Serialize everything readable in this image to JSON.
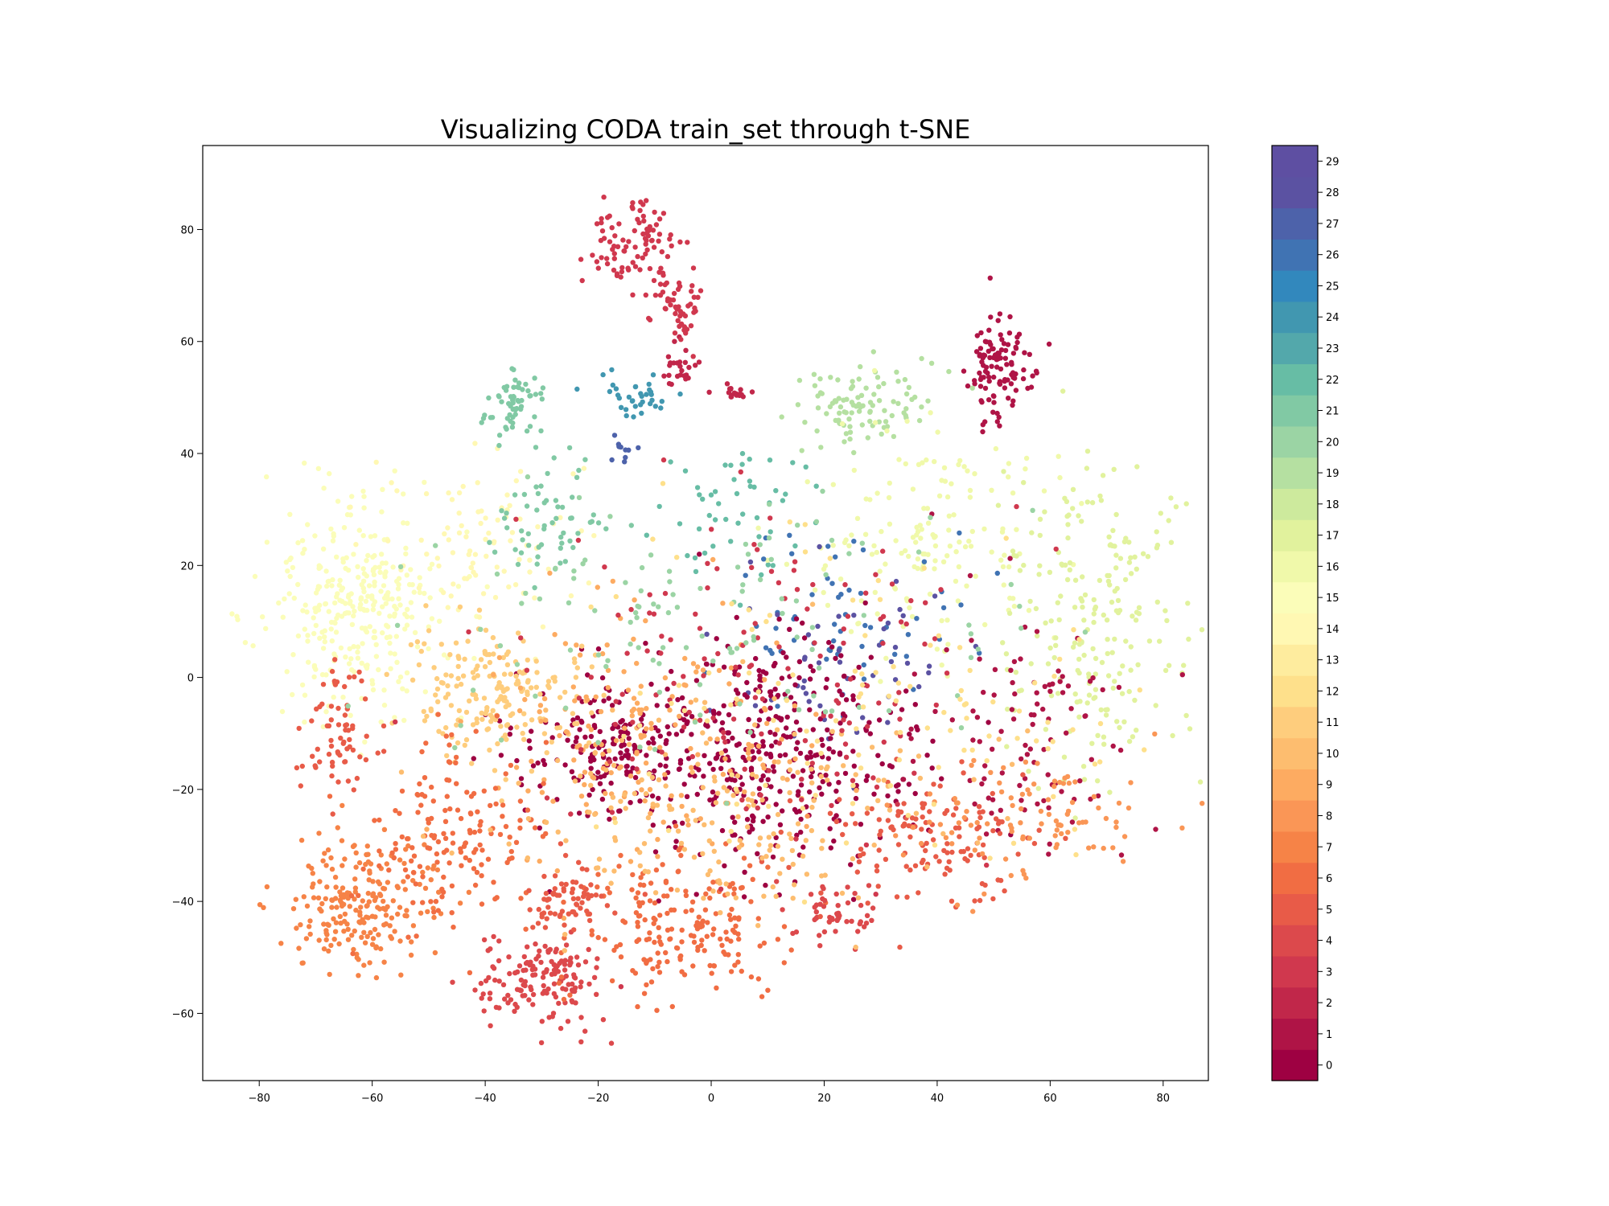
{
  "chart_data": {
    "type": "scatter",
    "title": "Visualizing CODA train_set through t-SNE",
    "xlabel": "",
    "ylabel": "",
    "xlim": [
      -90,
      88
    ],
    "ylim": [
      -72,
      95
    ],
    "grid": false,
    "xticks": [
      -80,
      -60,
      -40,
      -20,
      0,
      20,
      40,
      60,
      80
    ],
    "yticks": [
      -60,
      -40,
      -20,
      0,
      20,
      40,
      60,
      80
    ],
    "colorbar": {
      "colormap": "Spectral",
      "labels": [
        "0",
        "1",
        "2",
        "3",
        "4",
        "5",
        "6",
        "7",
        "8",
        "9",
        "10",
        "11",
        "12",
        "13",
        "14",
        "15",
        "16",
        "17",
        "18",
        "19",
        "20",
        "21",
        "22",
        "23",
        "24",
        "25",
        "26",
        "27",
        "28",
        "29"
      ],
      "colors": [
        "#9e0142",
        "#af1446",
        "#c1274a",
        "#d0384e",
        "#dc494c",
        "#e85b48",
        "#f16d43",
        "#f68347",
        "#fa9656",
        "#fdab61",
        "#fdbd6f",
        "#fecd7d",
        "#fee08b",
        "#feec9e",
        "#fff8b3",
        "#fbfdb9",
        "#f0f9aa",
        "#e1f29d",
        "#cdea9d",
        "#b5e0a1",
        "#9bd4a4",
        "#81c9a4",
        "#67bda5",
        "#53a8ab",
        "#4197b0",
        "#3288bd",
        "#4073b3",
        "#4d62aa",
        "#5b52a2",
        "#5e4fa2"
      ]
    },
    "clusters": [
      {
        "label": 3,
        "center": [
          -14,
          77
        ],
        "spread": [
          4.5,
          4
        ],
        "n": 90
      },
      {
        "label": 3,
        "center": [
          -6,
          68
        ],
        "spread": [
          3,
          3
        ],
        "n": 40
      },
      {
        "label": 2,
        "center": [
          -6,
          55
        ],
        "spread": [
          1.5,
          2
        ],
        "n": 25
      },
      {
        "label": 3,
        "center": [
          -5,
          63
        ],
        "spread": [
          1,
          1.5
        ],
        "n": 12
      },
      {
        "label": 2,
        "center": [
          4,
          51
        ],
        "spread": [
          1.5,
          0.8
        ],
        "n": 18
      },
      {
        "label": 1,
        "center": [
          51,
          55
        ],
        "spread": [
          3,
          4.5
        ],
        "n": 110
      },
      {
        "label": 21,
        "center": [
          -35,
          49
        ],
        "spread": [
          2.5,
          3
        ],
        "n": 60
      },
      {
        "label": 24,
        "center": [
          -14,
          49
        ],
        "spread": [
          3,
          2
        ],
        "n": 35
      },
      {
        "label": 27,
        "center": [
          -17,
          41
        ],
        "spread": [
          1.5,
          2
        ],
        "n": 10
      },
      {
        "label": 19,
        "center": [
          27,
          48
        ],
        "spread": [
          6,
          4
        ],
        "n": 100
      },
      {
        "label": 15,
        "center": [
          -63,
          12
        ],
        "spread": [
          8,
          10
        ],
        "n": 320
      },
      {
        "label": 14,
        "center": [
          -40,
          24
        ],
        "spread": [
          8,
          8
        ],
        "n": 90
      },
      {
        "label": 21,
        "center": [
          -30,
          28
        ],
        "spread": [
          6,
          5
        ],
        "n": 60
      },
      {
        "label": 22,
        "center": [
          5,
          30
        ],
        "spread": [
          8,
          6
        ],
        "n": 50
      },
      {
        "label": 16,
        "center": [
          40,
          25
        ],
        "spread": [
          12,
          10
        ],
        "n": 160
      },
      {
        "label": 17,
        "center": [
          68,
          10
        ],
        "spread": [
          8,
          14
        ],
        "n": 220
      },
      {
        "label": 26,
        "center": [
          23,
          10
        ],
        "spread": [
          10,
          8
        ],
        "n": 60
      },
      {
        "label": 28,
        "center": [
          25,
          5
        ],
        "spread": [
          12,
          10
        ],
        "n": 50
      },
      {
        "label": 0,
        "center": [
          10,
          -14
        ],
        "spread": [
          14,
          10
        ],
        "n": 420
      },
      {
        "label": 0,
        "center": [
          -20,
          -12
        ],
        "spread": [
          8,
          6
        ],
        "n": 140
      },
      {
        "label": 1,
        "center": [
          55,
          -8
        ],
        "spread": [
          10,
          10
        ],
        "n": 100
      },
      {
        "label": 11,
        "center": [
          -38,
          -3
        ],
        "spread": [
          8,
          6
        ],
        "n": 200
      },
      {
        "label": 9,
        "center": [
          -10,
          -10
        ],
        "spread": [
          15,
          12
        ],
        "n": 180
      },
      {
        "label": 5,
        "center": [
          -66,
          -10
        ],
        "spread": [
          3,
          5
        ],
        "n": 70
      },
      {
        "label": 7,
        "center": [
          -62,
          -40
        ],
        "spread": [
          7,
          6
        ],
        "n": 220
      },
      {
        "label": 6,
        "center": [
          -45,
          -28
        ],
        "spread": [
          8,
          8
        ],
        "n": 160
      },
      {
        "label": 4,
        "center": [
          -30,
          -55
        ],
        "spread": [
          6,
          4
        ],
        "n": 150
      },
      {
        "label": 6,
        "center": [
          -5,
          -45
        ],
        "spread": [
          10,
          6
        ],
        "n": 200
      },
      {
        "label": 5,
        "center": [
          -25,
          -40
        ],
        "spread": [
          4,
          3
        ],
        "n": 70
      },
      {
        "label": 4,
        "center": [
          22,
          -42
        ],
        "spread": [
          4,
          3
        ],
        "n": 50
      },
      {
        "label": 5,
        "center": [
          37,
          -30
        ],
        "spread": [
          10,
          6
        ],
        "n": 140
      },
      {
        "label": 8,
        "center": [
          55,
          -25
        ],
        "spread": [
          12,
          6
        ],
        "n": 100
      },
      {
        "label": 10,
        "center": [
          5,
          -25
        ],
        "spread": [
          20,
          10
        ],
        "n": 200
      },
      {
        "label": 3,
        "center": [
          10,
          0
        ],
        "spread": [
          22,
          16
        ],
        "n": 150
      },
      {
        "label": 20,
        "center": [
          0,
          10
        ],
        "spread": [
          25,
          12
        ],
        "n": 120
      },
      {
        "label": 12,
        "center": [
          25,
          -5
        ],
        "spread": [
          25,
          15
        ],
        "n": 120
      }
    ]
  }
}
